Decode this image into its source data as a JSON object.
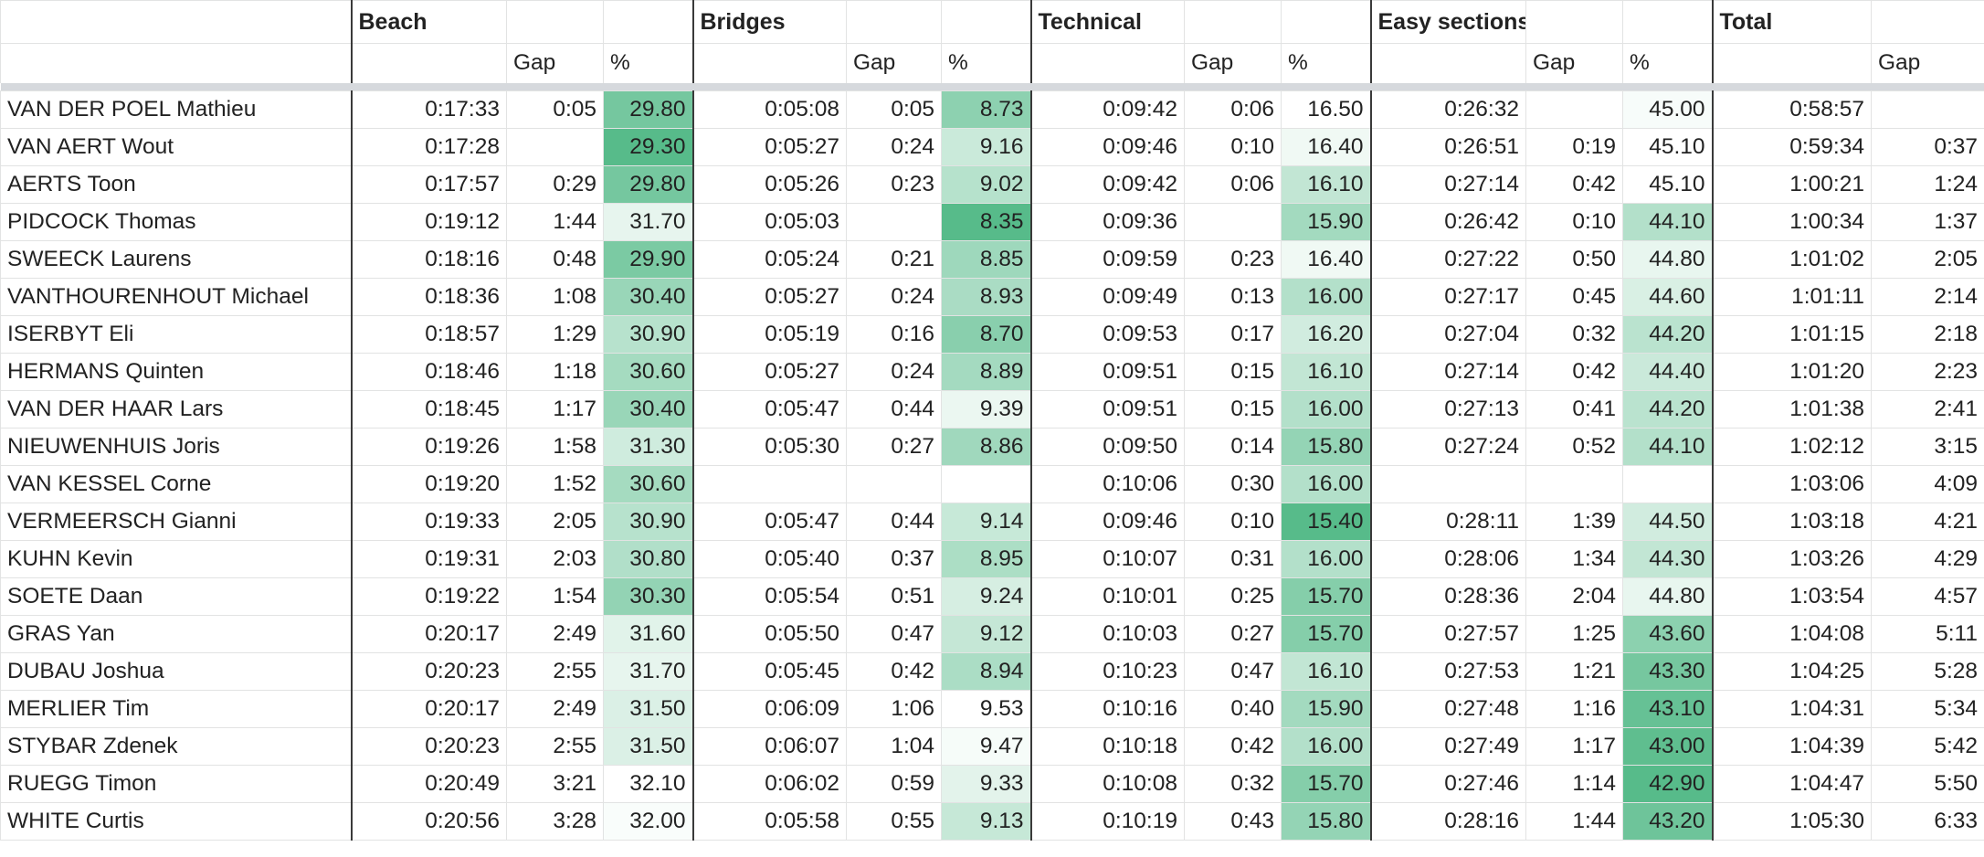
{
  "groups": [
    "Beach",
    "Bridges",
    "Technical",
    "Easy sections",
    "Total"
  ],
  "sub_headers": {
    "gap": "Gap",
    "pct": "%"
  },
  "rows": [
    {
      "name": "VAN DER POEL Mathieu",
      "beach": [
        "0:17:33",
        "0:05",
        "29.80"
      ],
      "bridges": [
        "0:05:08",
        "0:05",
        "8.73"
      ],
      "technical": [
        "0:09:42",
        "0:06",
        "16.50"
      ],
      "easy": [
        "0:26:32",
        "",
        "45.00"
      ],
      "total": [
        "0:58:57",
        ""
      ]
    },
    {
      "name": "VAN AERT Wout",
      "beach": [
        "0:17:28",
        "",
        "29.30"
      ],
      "bridges": [
        "0:05:27",
        "0:24",
        "9.16"
      ],
      "technical": [
        "0:09:46",
        "0:10",
        "16.40"
      ],
      "easy": [
        "0:26:51",
        "0:19",
        "45.10"
      ],
      "total": [
        "0:59:34",
        "0:37"
      ]
    },
    {
      "name": "AERTS Toon",
      "beach": [
        "0:17:57",
        "0:29",
        "29.80"
      ],
      "bridges": [
        "0:05:26",
        "0:23",
        "9.02"
      ],
      "technical": [
        "0:09:42",
        "0:06",
        "16.10"
      ],
      "easy": [
        "0:27:14",
        "0:42",
        "45.10"
      ],
      "total": [
        "1:00:21",
        "1:24"
      ]
    },
    {
      "name": "PIDCOCK Thomas",
      "beach": [
        "0:19:12",
        "1:44",
        "31.70"
      ],
      "bridges": [
        "0:05:03",
        "",
        "8.35"
      ],
      "technical": [
        "0:09:36",
        "",
        "15.90"
      ],
      "easy": [
        "0:26:42",
        "0:10",
        "44.10"
      ],
      "total": [
        "1:00:34",
        "1:37"
      ]
    },
    {
      "name": "SWEECK Laurens",
      "beach": [
        "0:18:16",
        "0:48",
        "29.90"
      ],
      "bridges": [
        "0:05:24",
        "0:21",
        "8.85"
      ],
      "technical": [
        "0:09:59",
        "0:23",
        "16.40"
      ],
      "easy": [
        "0:27:22",
        "0:50",
        "44.80"
      ],
      "total": [
        "1:01:02",
        "2:05"
      ]
    },
    {
      "name": "VANTHOURENHOUT Michael",
      "beach": [
        "0:18:36",
        "1:08",
        "30.40"
      ],
      "bridges": [
        "0:05:27",
        "0:24",
        "8.93"
      ],
      "technical": [
        "0:09:49",
        "0:13",
        "16.00"
      ],
      "easy": [
        "0:27:17",
        "0:45",
        "44.60"
      ],
      "total": [
        "1:01:11",
        "2:14"
      ]
    },
    {
      "name": "ISERBYT Eli",
      "beach": [
        "0:18:57",
        "1:29",
        "30.90"
      ],
      "bridges": [
        "0:05:19",
        "0:16",
        "8.70"
      ],
      "technical": [
        "0:09:53",
        "0:17",
        "16.20"
      ],
      "easy": [
        "0:27:04",
        "0:32",
        "44.20"
      ],
      "total": [
        "1:01:15",
        "2:18"
      ]
    },
    {
      "name": "HERMANS Quinten",
      "beach": [
        "0:18:46",
        "1:18",
        "30.60"
      ],
      "bridges": [
        "0:05:27",
        "0:24",
        "8.89"
      ],
      "technical": [
        "0:09:51",
        "0:15",
        "16.10"
      ],
      "easy": [
        "0:27:14",
        "0:42",
        "44.40"
      ],
      "total": [
        "1:01:20",
        "2:23"
      ]
    },
    {
      "name": "VAN DER HAAR Lars",
      "beach": [
        "0:18:45",
        "1:17",
        "30.40"
      ],
      "bridges": [
        "0:05:47",
        "0:44",
        "9.39"
      ],
      "technical": [
        "0:09:51",
        "0:15",
        "16.00"
      ],
      "easy": [
        "0:27:13",
        "0:41",
        "44.20"
      ],
      "total": [
        "1:01:38",
        "2:41"
      ]
    },
    {
      "name": "NIEUWENHUIS Joris",
      "beach": [
        "0:19:26",
        "1:58",
        "31.30"
      ],
      "bridges": [
        "0:05:30",
        "0:27",
        "8.86"
      ],
      "technical": [
        "0:09:50",
        "0:14",
        "15.80"
      ],
      "easy": [
        "0:27:24",
        "0:52",
        "44.10"
      ],
      "total": [
        "1:02:12",
        "3:15"
      ]
    },
    {
      "name": "VAN KESSEL Corne",
      "beach": [
        "0:19:20",
        "1:52",
        "30.60"
      ],
      "bridges": [
        "",
        "",
        ""
      ],
      "technical": [
        "0:10:06",
        "0:30",
        "16.00"
      ],
      "easy": [
        "",
        "",
        ""
      ],
      "total": [
        "1:03:06",
        "4:09"
      ]
    },
    {
      "name": "VERMEERSCH Gianni",
      "beach": [
        "0:19:33",
        "2:05",
        "30.90"
      ],
      "bridges": [
        "0:05:47",
        "0:44",
        "9.14"
      ],
      "technical": [
        "0:09:46",
        "0:10",
        "15.40"
      ],
      "easy": [
        "0:28:11",
        "1:39",
        "44.50"
      ],
      "total": [
        "1:03:18",
        "4:21"
      ]
    },
    {
      "name": "KUHN Kevin",
      "beach": [
        "0:19:31",
        "2:03",
        "30.80"
      ],
      "bridges": [
        "0:05:40",
        "0:37",
        "8.95"
      ],
      "technical": [
        "0:10:07",
        "0:31",
        "16.00"
      ],
      "easy": [
        "0:28:06",
        "1:34",
        "44.30"
      ],
      "total": [
        "1:03:26",
        "4:29"
      ]
    },
    {
      "name": "SOETE Daan",
      "beach": [
        "0:19:22",
        "1:54",
        "30.30"
      ],
      "bridges": [
        "0:05:54",
        "0:51",
        "9.24"
      ],
      "technical": [
        "0:10:01",
        "0:25",
        "15.70"
      ],
      "easy": [
        "0:28:36",
        "2:04",
        "44.80"
      ],
      "total": [
        "1:03:54",
        "4:57"
      ]
    },
    {
      "name": "GRAS Yan",
      "beach": [
        "0:20:17",
        "2:49",
        "31.60"
      ],
      "bridges": [
        "0:05:50",
        "0:47",
        "9.12"
      ],
      "technical": [
        "0:10:03",
        "0:27",
        "15.70"
      ],
      "easy": [
        "0:27:57",
        "1:25",
        "43.60"
      ],
      "total": [
        "1:04:08",
        "5:11"
      ]
    },
    {
      "name": "DUBAU Joshua",
      "beach": [
        "0:20:23",
        "2:55",
        "31.70"
      ],
      "bridges": [
        "0:05:45",
        "0:42",
        "8.94"
      ],
      "technical": [
        "0:10:23",
        "0:47",
        "16.10"
      ],
      "easy": [
        "0:27:53",
        "1:21",
        "43.30"
      ],
      "total": [
        "1:04:25",
        "5:28"
      ]
    },
    {
      "name": "MERLIER Tim",
      "beach": [
        "0:20:17",
        "2:49",
        "31.50"
      ],
      "bridges": [
        "0:06:09",
        "1:06",
        "9.53"
      ],
      "technical": [
        "0:10:16",
        "0:40",
        "15.90"
      ],
      "easy": [
        "0:27:48",
        "1:16",
        "43.10"
      ],
      "total": [
        "1:04:31",
        "5:34"
      ]
    },
    {
      "name": "STYBAR Zdenek",
      "beach": [
        "0:20:23",
        "2:55",
        "31.50"
      ],
      "bridges": [
        "0:06:07",
        "1:04",
        "9.47"
      ],
      "technical": [
        "0:10:18",
        "0:42",
        "16.00"
      ],
      "easy": [
        "0:27:49",
        "1:17",
        "43.00"
      ],
      "total": [
        "1:04:39",
        "5:42"
      ]
    },
    {
      "name": "RUEGG Timon",
      "beach": [
        "0:20:49",
        "3:21",
        "32.10"
      ],
      "bridges": [
        "0:06:02",
        "0:59",
        "9.33"
      ],
      "technical": [
        "0:10:08",
        "0:32",
        "15.70"
      ],
      "easy": [
        "0:27:46",
        "1:14",
        "42.90"
      ],
      "total": [
        "1:04:47",
        "5:50"
      ]
    },
    {
      "name": "WHITE Curtis",
      "beach": [
        "0:20:56",
        "3:28",
        "32.00"
      ],
      "bridges": [
        "0:05:58",
        "0:55",
        "9.13"
      ],
      "technical": [
        "0:10:19",
        "0:43",
        "15.80"
      ],
      "easy": [
        "0:28:16",
        "1:44",
        "43.20"
      ],
      "total": [
        "1:05:30",
        "6:33"
      ]
    }
  ],
  "colors": {
    "scale_low": "#57bb8a",
    "scale_high": "#ffffff",
    "grid": "#e2e3e3",
    "frozen_bar": "#d6d9dd",
    "divider": "#3a3a3a"
  }
}
